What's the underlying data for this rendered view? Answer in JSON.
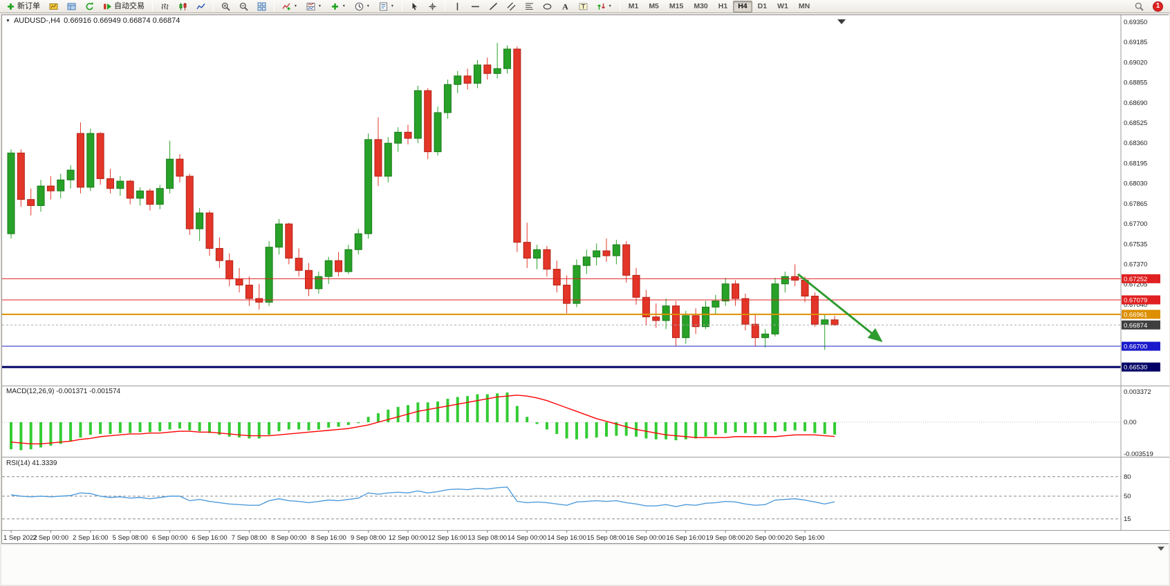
{
  "toolbar": {
    "groups": [
      {
        "items": [
          {
            "icon": "new-order-icon",
            "label": "新订单",
            "name": "new-order-button"
          },
          {
            "icon": "market-watch-icon",
            "name": "market-watch-button"
          },
          {
            "icon": "navigator-icon",
            "name": "navigator-button"
          },
          {
            "icon": "refresh-icon",
            "name": "refresh-button"
          },
          {
            "icon": "autotrading-icon",
            "label": "自动交易",
            "name": "autotrading-button"
          }
        ]
      },
      {
        "items": [
          {
            "icon": "bar-chart-icon",
            "name": "bar-chart-button"
          },
          {
            "icon": "candlestick-chart-icon",
            "name": "candlestick-chart-button"
          },
          {
            "icon": "line-chart-icon",
            "name": "line-chart-button"
          }
        ]
      },
      {
        "items": [
          {
            "icon": "zoom-in-icon",
            "name": "zoom-in-button"
          },
          {
            "icon": "zoom-out-icon",
            "name": "zoom-out-button"
          },
          {
            "icon": "tile-windows-icon",
            "name": "tile-windows-button"
          }
        ]
      },
      {
        "items": [
          {
            "icon": "indicators-icon",
            "caret": true,
            "name": "indicators-button"
          },
          {
            "icon": "indicator-window-icon",
            "caret": true,
            "name": "indicator-window-button"
          },
          {
            "icon": "add-indicator-icon",
            "caret": true,
            "name": "add-indicator-button"
          },
          {
            "icon": "periods-icon",
            "caret": true,
            "name": "periods-button"
          },
          {
            "icon": "templates-icon",
            "caret": true,
            "name": "templates-button"
          }
        ]
      },
      {
        "items": [
          {
            "icon": "cursor-icon",
            "name": "cursor-button"
          },
          {
            "icon": "crosshair-icon",
            "name": "crosshair-button"
          }
        ]
      },
      {
        "items": [
          {
            "icon": "vertical-line-icon",
            "name": "vertical-line-button"
          },
          {
            "icon": "horizontal-line-icon",
            "name": "horizontal-line-button"
          },
          {
            "icon": "trendline-icon",
            "name": "trendline-button"
          },
          {
            "icon": "channel-icon",
            "name": "channel-button"
          },
          {
            "icon": "fibonacci-icon",
            "name": "fibonacci-button"
          },
          {
            "icon": "ellipse-icon",
            "name": "shapes-button"
          },
          {
            "icon": "text-icon",
            "name": "text-button"
          },
          {
            "icon": "text-label-icon",
            "name": "text-label-button"
          },
          {
            "icon": "arrows-icon",
            "caret": true,
            "name": "arrows-button"
          }
        ]
      },
      {
        "type": "timeframes",
        "items": [
          {
            "label": "M1"
          },
          {
            "label": "M5"
          },
          {
            "label": "M15"
          },
          {
            "label": "M30"
          },
          {
            "label": "H1"
          },
          {
            "label": "H4",
            "active": true
          },
          {
            "label": "D1"
          },
          {
            "label": "W1"
          },
          {
            "label": "MN"
          }
        ]
      }
    ],
    "right": [
      {
        "icon": "search-icon",
        "name": "search-button"
      },
      {
        "badge": "1",
        "name": "notification-badge"
      }
    ]
  },
  "chart": {
    "title": {
      "symbol_period": "AUDUSD-,H4",
      "ohlc": "0.66916 0.66949 0.66874 0.66874"
    }
  },
  "chart_data": {
    "type": "candlestick",
    "symbol": "AUDUSD-",
    "timeframe": "H4",
    "colors": {
      "up": "#27a127",
      "up_border": "#1c7a1c",
      "down": "#e33528",
      "down_border": "#b22418",
      "macd_hist": "#33cc33",
      "macd_signal": "#ff0000",
      "rsi_line": "#4f9bdb",
      "arrow": "#2e9b2e",
      "axis_text": "#1b1b1b",
      "separator": "#9a9a9a"
    },
    "price_axis": {
      "anchor_price": 0.6935,
      "step": 0.00165,
      "labels": [
        "0.69350",
        "0.69185",
        "0.69020",
        "0.68855",
        "0.68690",
        "0.68525",
        "0.68360",
        "0.68195",
        "0.68030",
        "0.67865",
        "0.67700",
        "0.67535",
        "0.67370",
        "0.67205",
        "0.67040"
      ]
    },
    "candles": [
      [
        0.6762,
        0.6831,
        0.6758,
        0.6828
      ],
      [
        0.6828,
        0.6831,
        0.6784,
        0.679
      ],
      [
        0.679,
        0.6799,
        0.6777,
        0.6785
      ],
      [
        0.6785,
        0.6806,
        0.678,
        0.6801
      ],
      [
        0.6801,
        0.6809,
        0.679,
        0.6797
      ],
      [
        0.6797,
        0.6811,
        0.6791,
        0.6806
      ],
      [
        0.6806,
        0.6818,
        0.6799,
        0.6814
      ],
      [
        0.6844,
        0.6853,
        0.6795,
        0.68
      ],
      [
        0.68,
        0.6848,
        0.6797,
        0.6844
      ],
      [
        0.6844,
        0.6845,
        0.6802,
        0.6807
      ],
      [
        0.6807,
        0.6815,
        0.6795,
        0.6799
      ],
      [
        0.6799,
        0.6809,
        0.6793,
        0.6805
      ],
      [
        0.6805,
        0.6806,
        0.6786,
        0.6791
      ],
      [
        0.6791,
        0.68,
        0.6785,
        0.6797
      ],
      [
        0.6797,
        0.6799,
        0.6781,
        0.6786
      ],
      [
        0.6786,
        0.6802,
        0.6782,
        0.6799
      ],
      [
        0.6799,
        0.6838,
        0.6795,
        0.6823
      ],
      [
        0.6823,
        0.6827,
        0.6804,
        0.6809
      ],
      [
        0.6809,
        0.6811,
        0.6761,
        0.6766
      ],
      [
        0.6766,
        0.6783,
        0.6756,
        0.6779
      ],
      [
        0.6779,
        0.6781,
        0.6744,
        0.675
      ],
      [
        0.675,
        0.6759,
        0.6734,
        0.674
      ],
      [
        0.674,
        0.6746,
        0.6719,
        0.6725
      ],
      [
        0.6725,
        0.6734,
        0.6714,
        0.672
      ],
      [
        0.672,
        0.6727,
        0.6703,
        0.6709
      ],
      [
        0.6709,
        0.6721,
        0.67,
        0.6706
      ],
      [
        0.6706,
        0.6756,
        0.6703,
        0.6751
      ],
      [
        0.6751,
        0.6774,
        0.6745,
        0.677
      ],
      [
        0.677,
        0.6771,
        0.6737,
        0.6742
      ],
      [
        0.6742,
        0.675,
        0.6727,
        0.6732
      ],
      [
        0.6732,
        0.6738,
        0.6711,
        0.6717
      ],
      [
        0.6717,
        0.6731,
        0.6713,
        0.6727
      ],
      [
        0.6727,
        0.6743,
        0.6721,
        0.674
      ],
      [
        0.674,
        0.6747,
        0.6727,
        0.6731
      ],
      [
        0.6731,
        0.6753,
        0.6729,
        0.6749
      ],
      [
        0.6749,
        0.6766,
        0.6745,
        0.6762
      ],
      [
        0.6762,
        0.6844,
        0.6758,
        0.6839
      ],
      [
        0.6839,
        0.6857,
        0.6801,
        0.6809
      ],
      [
        0.6809,
        0.6841,
        0.6804,
        0.6836
      ],
      [
        0.6836,
        0.6849,
        0.6829,
        0.6845
      ],
      [
        0.6845,
        0.6851,
        0.6835,
        0.684
      ],
      [
        0.684,
        0.6883,
        0.6836,
        0.6879
      ],
      [
        0.6879,
        0.6881,
        0.6823,
        0.6829
      ],
      [
        0.6829,
        0.6866,
        0.6826,
        0.6861
      ],
      [
        0.6861,
        0.6888,
        0.6856,
        0.6884
      ],
      [
        0.6884,
        0.6895,
        0.6877,
        0.6891
      ],
      [
        0.6891,
        0.6897,
        0.688,
        0.6885
      ],
      [
        0.6885,
        0.6904,
        0.6881,
        0.69
      ],
      [
        0.69,
        0.6906,
        0.6888,
        0.6893
      ],
      [
        0.6893,
        0.6918,
        0.6889,
        0.6897
      ],
      [
        0.6897,
        0.6916,
        0.6893,
        0.6913
      ],
      [
        0.6913,
        0.6915,
        0.6747,
        0.6755
      ],
      [
        0.6755,
        0.6771,
        0.6734,
        0.6742
      ],
      [
        0.6742,
        0.6753,
        0.6733,
        0.6749
      ],
      [
        0.6749,
        0.6752,
        0.6727,
        0.6733
      ],
      [
        0.6733,
        0.674,
        0.6714,
        0.672
      ],
      [
        0.672,
        0.6728,
        0.6697,
        0.6705
      ],
      [
        0.6705,
        0.6741,
        0.6702,
        0.6736
      ],
      [
        0.6736,
        0.6749,
        0.6729,
        0.6743
      ],
      [
        0.6743,
        0.6754,
        0.6736,
        0.6748
      ],
      [
        0.6748,
        0.6758,
        0.6739,
        0.6744
      ],
      [
        0.6744,
        0.6757,
        0.6737,
        0.6753
      ],
      [
        0.6753,
        0.6756,
        0.6722,
        0.6728
      ],
      [
        0.6728,
        0.6734,
        0.6704,
        0.671
      ],
      [
        0.671,
        0.6716,
        0.6687,
        0.6694
      ],
      [
        0.6694,
        0.6705,
        0.6685,
        0.6691
      ],
      [
        0.6691,
        0.6709,
        0.6684,
        0.6703
      ],
      [
        0.6703,
        0.6707,
        0.667,
        0.6677
      ],
      [
        0.6677,
        0.6699,
        0.6672,
        0.6695
      ],
      [
        0.6695,
        0.6701,
        0.668,
        0.6686
      ],
      [
        0.6686,
        0.6707,
        0.6684,
        0.6702
      ],
      [
        0.6702,
        0.6712,
        0.6696,
        0.6707
      ],
      [
        0.6707,
        0.6726,
        0.6703,
        0.6721
      ],
      [
        0.6721,
        0.6724,
        0.6703,
        0.6709
      ],
      [
        0.6709,
        0.6713,
        0.6683,
        0.6688
      ],
      [
        0.6688,
        0.6696,
        0.667,
        0.6677
      ],
      [
        0.6677,
        0.6684,
        0.6669,
        0.668
      ],
      [
        0.668,
        0.6726,
        0.6678,
        0.6721
      ],
      [
        0.6721,
        0.6731,
        0.6714,
        0.6727
      ],
      [
        0.6727,
        0.6737,
        0.6719,
        0.6724
      ],
      [
        0.6724,
        0.6727,
        0.6706,
        0.6711
      ],
      [
        0.6711,
        0.6714,
        0.6686,
        0.6688
      ],
      [
        0.6688,
        0.6696,
        0.6667,
        0.66916
      ],
      [
        0.66916,
        0.66949,
        0.66874,
        0.66874
      ]
    ],
    "hlines": [
      {
        "price": 0.67252,
        "label": "0.67252",
        "color": "#e02020",
        "width": 1
      },
      {
        "price": 0.67079,
        "label": "0.67079",
        "color": "#e02020",
        "width": 1
      },
      {
        "price": 0.66961,
        "label": "0.66961",
        "color": "#dd8f00",
        "width": 2
      },
      {
        "price": 0.667,
        "label": "0.66700",
        "color": "#1a1acc",
        "width": 1
      },
      {
        "price": 0.6653,
        "label": "0.66530",
        "color": "#000066",
        "width": 3
      }
    ],
    "current_price": {
      "value": 0.66874,
      "label": "0.66874",
      "tag_color": "#3f3f3f",
      "line_color": "#aaaaaa"
    },
    "trend_arrow": {
      "from": {
        "bar": 79.3,
        "price": 0.6729
      },
      "to": {
        "bar": 87.6,
        "price": 0.6675
      }
    },
    "macd": {
      "label": "MACD(12,26,9) -0.001371 -0.001574",
      "axis_labels": [
        {
          "value": 0.003372,
          "label": "0.003372"
        },
        {
          "value": 0.0,
          "label": "0.00"
        },
        {
          "value": -0.003519,
          "label": "-0.003519"
        }
      ],
      "hist": [
        -0.003,
        -0.0031,
        -0.003,
        -0.0028,
        -0.0026,
        -0.0024,
        -0.0021,
        -0.0017,
        -0.0014,
        -0.0013,
        -0.0013,
        -0.0012,
        -0.0012,
        -0.0011,
        -0.0011,
        -0.001,
        -0.0008,
        -0.0007,
        -0.0009,
        -0.001,
        -0.0012,
        -0.0014,
        -0.0016,
        -0.0017,
        -0.0018,
        -0.0018,
        -0.0014,
        -0.001,
        -0.0008,
        -0.0008,
        -0.0009,
        -0.0008,
        -0.0006,
        -0.0005,
        -0.0003,
        -0.0001,
        0.0006,
        0.001,
        0.0014,
        0.0017,
        0.0019,
        0.0022,
        0.0022,
        0.0023,
        0.0026,
        0.0028,
        0.0029,
        0.0031,
        0.0031,
        0.0032,
        0.0033,
        0.0018,
        0.0006,
        -0.0002,
        -0.0008,
        -0.0013,
        -0.0018,
        -0.0019,
        -0.0018,
        -0.0017,
        -0.0016,
        -0.0015,
        -0.0015,
        -0.0016,
        -0.0018,
        -0.0019,
        -0.0019,
        -0.002,
        -0.0019,
        -0.0018,
        -0.0016,
        -0.0014,
        -0.0012,
        -0.0011,
        -0.0012,
        -0.0013,
        -0.0013,
        -0.001,
        -0.001,
        -0.0009,
        -0.001,
        -0.0012,
        -0.0013,
        -0.001371
      ],
      "signal": [
        -0.0022,
        -0.0023,
        -0.0024,
        -0.0024,
        -0.0023,
        -0.0022,
        -0.0021,
        -0.0019,
        -0.0018,
        -0.0016,
        -0.0015,
        -0.0014,
        -0.0013,
        -0.0013,
        -0.0012,
        -0.0012,
        -0.0011,
        -0.001,
        -0.001,
        -0.0011,
        -0.0011,
        -0.0012,
        -0.0013,
        -0.0014,
        -0.0015,
        -0.0015,
        -0.0015,
        -0.0014,
        -0.0013,
        -0.0012,
        -0.0011,
        -0.001,
        -0.0009,
        -0.0008,
        -0.0007,
        -0.0005,
        -0.0003,
        0.0,
        0.0003,
        0.0006,
        0.0009,
        0.0012,
        0.0014,
        0.0016,
        0.0018,
        0.002,
        0.0022,
        0.0024,
        0.0026,
        0.0028,
        0.0029,
        0.003,
        0.0029,
        0.0027,
        0.0024,
        0.002,
        0.0016,
        0.0012,
        0.0008,
        0.0004,
        0.0001,
        -0.0002,
        -0.0005,
        -0.0008,
        -0.001,
        -0.0012,
        -0.0014,
        -0.0015,
        -0.0016,
        -0.0017,
        -0.0017,
        -0.0017,
        -0.0017,
        -0.0016,
        -0.0016,
        -0.0016,
        -0.0016,
        -0.0016,
        -0.0015,
        -0.0014,
        -0.0014,
        -0.0014,
        -0.0015,
        -0.001574
      ]
    },
    "rsi": {
      "label": "RSI(14) 41.3339",
      "levels": [
        {
          "value": 80,
          "label": "80"
        },
        {
          "value": 50,
          "label": "50"
        },
        {
          "value": 15,
          "label": "15"
        }
      ],
      "values": [
        52,
        50,
        49,
        50,
        49,
        50,
        51,
        55,
        54,
        50,
        48,
        49,
        47,
        48,
        46,
        48,
        50,
        50,
        43,
        45,
        42,
        40,
        38,
        37,
        36,
        36,
        43,
        46,
        43,
        42,
        40,
        42,
        44,
        43,
        45,
        47,
        55,
        53,
        55,
        56,
        55,
        58,
        55,
        57,
        60,
        61,
        60,
        62,
        61,
        63,
        64,
        42,
        40,
        41,
        40,
        38,
        36,
        41,
        42,
        43,
        42,
        43,
        40,
        38,
        35,
        35,
        37,
        34,
        37,
        36,
        39,
        40,
        42,
        41,
        38,
        36,
        37,
        44,
        45,
        46,
        44,
        41,
        38,
        41.33
      ]
    },
    "time_labels": [
      "1 Sep 2022",
      "2 Sep 00:00",
      "2 Sep 16:00",
      "5 Sep 08:00",
      "6 Sep 00:00",
      "6 Sep 16:00",
      "7 Sep 08:00",
      "8 Sep 00:00",
      "8 Sep 16:00",
      "9 Sep 08:00",
      "12 Sep 00:00",
      "12 Sep 16:00",
      "13 Sep 08:00",
      "14 Sep 00:00",
      "14 Sep 16:00",
      "15 Sep 08:00",
      "16 Sep 00:00",
      "16 Sep 16:00",
      "19 Sep 08:00",
      "20 Sep 00:00",
      "20 Sep 16:00"
    ],
    "bars_per_label": 4
  }
}
